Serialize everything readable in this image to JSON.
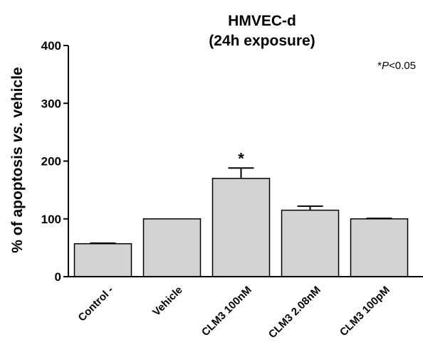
{
  "chart_data": {
    "type": "bar",
    "title_lines": [
      "HMVEC-d",
      "(24h exposure)"
    ],
    "ylabel": {
      "prefix": "% of apoptosis ",
      "italic": "vs.",
      "suffix": " vehicle"
    },
    "xlabel": "",
    "ylim": [
      0,
      400
    ],
    "yticks": [
      0,
      100,
      200,
      300,
      400
    ],
    "categories": [
      "Control -",
      "Vehicle",
      "CLM3 100nM",
      "CLM3 2.08nM",
      "CLM3 100pM"
    ],
    "values": [
      57,
      100,
      170,
      115,
      100
    ],
    "errors": [
      1,
      0,
      18,
      7,
      1
    ],
    "significance": [
      "",
      "",
      "*",
      "",
      ""
    ],
    "annotation": {
      "star": "*",
      "italic": "P",
      "rest": "<0.05"
    },
    "bar_color": "#d3d3d3",
    "grid": false
  }
}
